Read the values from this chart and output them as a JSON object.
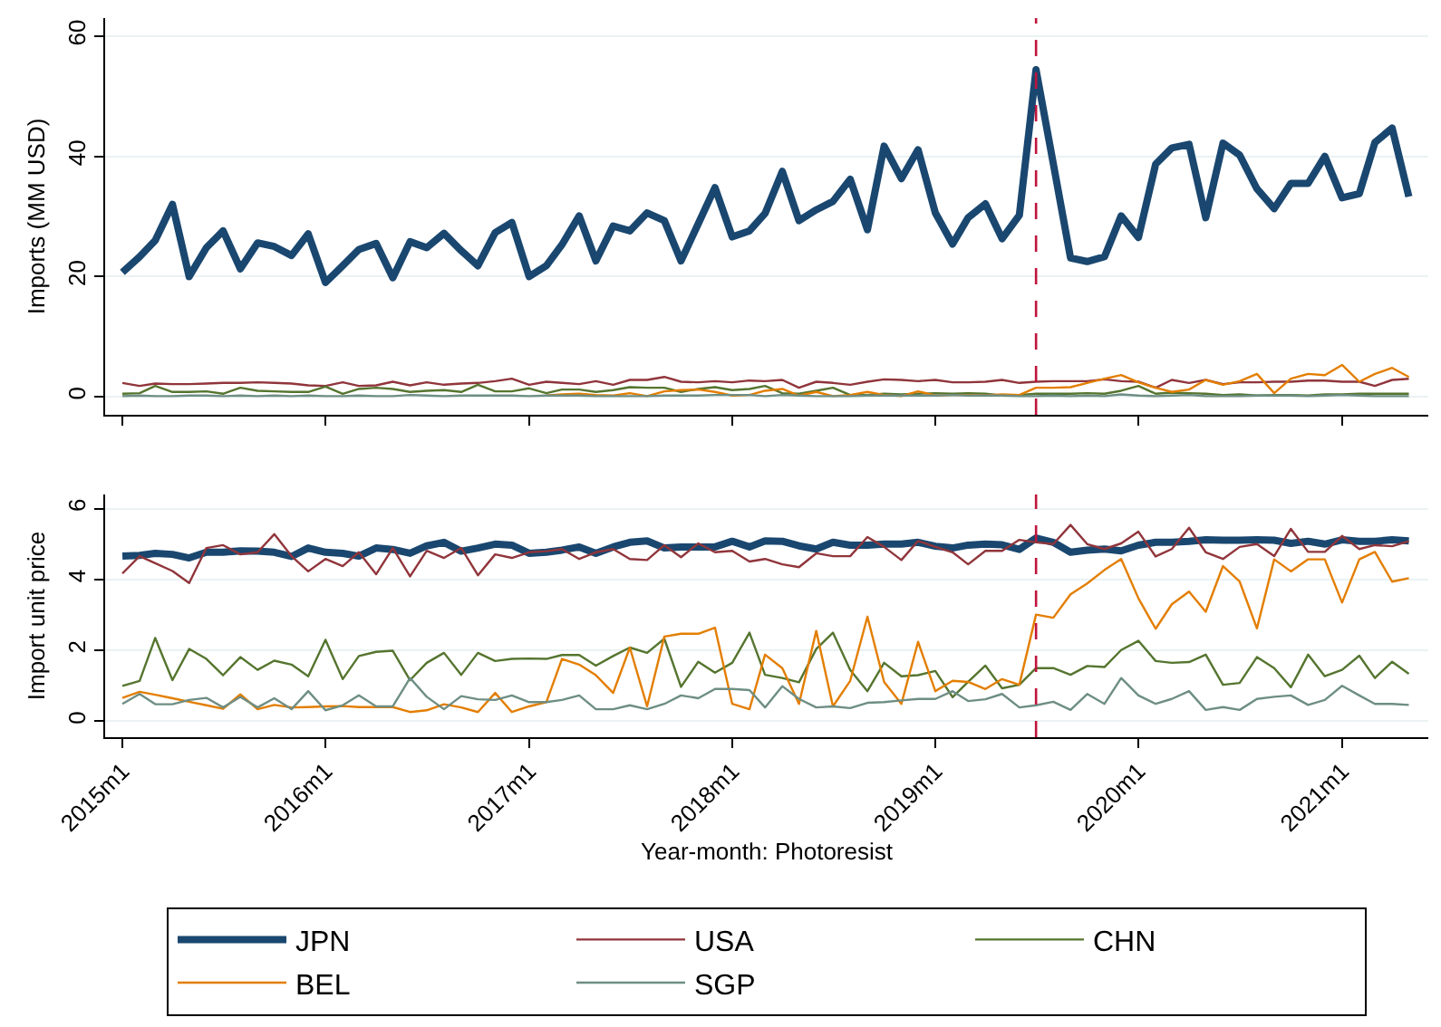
{
  "chart_data": [
    {
      "type": "line",
      "ylabel": "Imports (MM USD)",
      "grid": "y",
      "legend": false,
      "tick_labels": "y",
      "x": [
        "2015-01",
        "2015-02",
        "2015-03",
        "2015-04",
        "2015-05",
        "2015-06",
        "2015-07",
        "2015-08",
        "2015-09",
        "2015-10",
        "2015-11",
        "2015-12",
        "2016-01",
        "2016-02",
        "2016-03",
        "2016-04",
        "2016-05",
        "2016-06",
        "2016-07",
        "2016-08",
        "2016-09",
        "2016-10",
        "2016-11",
        "2016-12",
        "2017-01",
        "2017-02",
        "2017-03",
        "2017-04",
        "2017-05",
        "2017-06",
        "2017-07",
        "2017-08",
        "2017-09",
        "2017-10",
        "2017-11",
        "2017-12",
        "2018-01",
        "2018-02",
        "2018-03",
        "2018-04",
        "2018-05",
        "2018-06",
        "2018-07",
        "2018-08",
        "2018-09",
        "2018-10",
        "2018-11",
        "2018-12",
        "2019-01",
        "2019-02",
        "2019-03",
        "2019-04",
        "2019-05",
        "2019-06",
        "2019-07",
        "2019-08",
        "2019-09",
        "2019-10",
        "2019-11",
        "2019-12",
        "2020-01",
        "2020-02",
        "2020-03",
        "2020-04",
        "2020-05",
        "2020-06",
        "2020-07",
        "2020-08",
        "2020-09",
        "2020-10",
        "2020-11",
        "2020-12",
        "2021-01",
        "2021-02",
        "2021-03",
        "2021-04",
        "2021-05"
      ],
      "xlim": [
        "2014-12-01",
        "2021-06-05"
      ],
      "xticks": [
        {
          "value": "2015-01",
          "label": null
        },
        {
          "value": "2016-01",
          "label": null
        },
        {
          "value": "2017-01",
          "label": null
        },
        {
          "value": "2018-01",
          "label": null
        },
        {
          "value": "2019-01",
          "label": null
        },
        {
          "value": "2020-01",
          "label": null
        },
        {
          "value": "2021-01",
          "label": null
        }
      ],
      "ylim": [
        -3,
        63
      ],
      "yticks": [
        0,
        20,
        40,
        60
      ],
      "ref_lines": [
        {
          "axis": "x",
          "value": "2019-07",
          "color": "#c0143c",
          "line_style": "dashed"
        }
      ],
      "series": [
        {
          "color": "#1a476f",
          "values": [
            20.7,
            23.3,
            26,
            32,
            20,
            24.8,
            27.6,
            21.3,
            25.6,
            25,
            23.5,
            27.1,
            19,
            21.8,
            24.5,
            25.5,
            19.8,
            25.8,
            24.8,
            27.2,
            24.3,
            21.8,
            27.3,
            29,
            20,
            21.8,
            25.3,
            30.1,
            22.6,
            28.4,
            27.6,
            30.6,
            29.3,
            22.6,
            28.8,
            34.8,
            26.6,
            27.6,
            30.5,
            37.5,
            29.3,
            31.1,
            32.5,
            36.2,
            27.8,
            41.7,
            36.3,
            41.1,
            30.6,
            25.4,
            29.8,
            32.1,
            26.3,
            30.2,
            54.4,
            38.8,
            23.1,
            22.5,
            23.3,
            30.1,
            26.5,
            38.7,
            41.4,
            42,
            29.8,
            42.2,
            40.2,
            34.6,
            31.3,
            35.5,
            35.5,
            40,
            33.1,
            33.8,
            42.3,
            44.7,
            33.3
          ]
        },
        {
          "color": "#90353b",
          "values": [
            2.3,
            1.8,
            2.2,
            2.1,
            2.1,
            2.2,
            2.3,
            2.3,
            2.4,
            2.3,
            2.2,
            1.9,
            1.8,
            2.4,
            1.8,
            1.9,
            2.5,
            1.9,
            2.4,
            2.0,
            2.2,
            2.3,
            2.6,
            3.0,
            2.0,
            2.5,
            2.3,
            2.1,
            2.6,
            2.0,
            2.8,
            2.8,
            3.3,
            2.5,
            2.4,
            2.6,
            2.4,
            2.7,
            2.6,
            2.8,
            1.5,
            2.5,
            2.3,
            2.0,
            2.5,
            2.9,
            2.8,
            2.6,
            2.8,
            2.4,
            2.4,
            2.5,
            2.8,
            2.3,
            2.5,
            2.6,
            2.6,
            2.6,
            2.9,
            2.6,
            2.5,
            1.5,
            2.8,
            2.3,
            2.8,
            2.1,
            2.4,
            2.4,
            2.5,
            2.5,
            2.7,
            2.7,
            2.5,
            2.5,
            1.8,
            2.8,
            3.0
          ]
        },
        {
          "color": "#55752f",
          "values": [
            0.5,
            0.6,
            1.8,
            0.8,
            0.8,
            0.9,
            0.5,
            1.5,
            1.0,
            0.9,
            0.8,
            0.8,
            1.7,
            0.5,
            1.3,
            1.5,
            1.3,
            0.8,
            1.0,
            1.1,
            0.8,
            2.0,
            0.9,
            0.9,
            1.4,
            0.6,
            1.2,
            1.2,
            0.8,
            1.1,
            1.6,
            1.5,
            1.5,
            0.8,
            1.3,
            1.6,
            1.1,
            1.3,
            1.8,
            0.6,
            0.5,
            1.0,
            1.5,
            0.3,
            0.3,
            0.5,
            0.4,
            0.5,
            0.6,
            0.5,
            0.6,
            0.5,
            0.2,
            0.3,
            0.5,
            0.5,
            0.5,
            0.6,
            0.5,
            1.0,
            1.8,
            0.5,
            0.7,
            0.6,
            0.5,
            0.3,
            0.4,
            0.2,
            0.3,
            0.3,
            0.2,
            0.4,
            0.4,
            0.5,
            0.5,
            0.5,
            0.5
          ]
        },
        {
          "color": "#e37e00",
          "values": [
            null,
            null,
            null,
            null,
            null,
            null,
            null,
            null,
            null,
            null,
            null,
            null,
            null,
            null,
            null,
            null,
            null,
            null,
            null,
            null,
            null,
            null,
            null,
            null,
            null,
            0.2,
            0.4,
            0.5,
            0.3,
            0.2,
            0.6,
            0.1,
            0.9,
            1.1,
            1.2,
            0.8,
            0.2,
            0.3,
            1.0,
            1.3,
            0.2,
            0.8,
            0.1,
            0.3,
            0.8,
            0.3,
            0.1,
            0.9,
            0.2,
            0.3,
            0.3,
            0.2,
            0.4,
            0.3,
            1.5,
            1.5,
            1.6,
            2.3,
            3.0,
            3.6,
            2.4,
            1.5,
            0.8,
            1.2,
            2.8,
            2.0,
            2.6,
            3.8,
            0.6,
            3.0,
            3.8,
            3.6,
            5.3,
            2.5,
            3.8,
            4.8,
            3.3
          ]
        },
        {
          "color": "#6e8e84",
          "values": [
            0.1,
            0.2,
            0.1,
            0.1,
            0.2,
            0.2,
            0.1,
            0.2,
            0.1,
            0.2,
            0.1,
            0.2,
            0.1,
            0.1,
            0.2,
            0.1,
            0.1,
            0.3,
            0.2,
            0.1,
            0.2,
            0.2,
            0.2,
            0.2,
            0.1,
            0.2,
            0.2,
            0.2,
            0.1,
            0.1,
            0.1,
            0.1,
            0.2,
            0.2,
            0.2,
            0.3,
            0.3,
            0.3,
            0.1,
            0.3,
            0.2,
            0.1,
            0.1,
            0.1,
            0.2,
            0.2,
            0.2,
            0.2,
            0.2,
            0.3,
            0.2,
            0.2,
            0.2,
            0.1,
            0.1,
            0.2,
            0.1,
            0.2,
            0.1,
            0.4,
            0.2,
            0.1,
            0.2,
            0.3,
            0.1,
            0.1,
            0.1,
            0.2,
            0.2,
            0.2,
            0.1,
            0.2,
            0.3,
            0.2,
            0.1,
            0.1,
            0.1
          ]
        }
      ]
    },
    {
      "type": "line",
      "ylabel": "Import unit price",
      "xlabel": "Year-month: Photoresist",
      "grid": "y",
      "legend": "bottom",
      "x": [
        "2015-01",
        "2015-02",
        "2015-03",
        "2015-04",
        "2015-05",
        "2015-06",
        "2015-07",
        "2015-08",
        "2015-09",
        "2015-10",
        "2015-11",
        "2015-12",
        "2016-01",
        "2016-02",
        "2016-03",
        "2016-04",
        "2016-05",
        "2016-06",
        "2016-07",
        "2016-08",
        "2016-09",
        "2016-10",
        "2016-11",
        "2016-12",
        "2017-01",
        "2017-02",
        "2017-03",
        "2017-04",
        "2017-05",
        "2017-06",
        "2017-07",
        "2017-08",
        "2017-09",
        "2017-10",
        "2017-11",
        "2017-12",
        "2018-01",
        "2018-02",
        "2018-03",
        "2018-04",
        "2018-05",
        "2018-06",
        "2018-07",
        "2018-08",
        "2018-09",
        "2018-10",
        "2018-11",
        "2018-12",
        "2019-01",
        "2019-02",
        "2019-03",
        "2019-04",
        "2019-05",
        "2019-06",
        "2019-07",
        "2019-08",
        "2019-09",
        "2019-10",
        "2019-11",
        "2019-12",
        "2020-01",
        "2020-02",
        "2020-03",
        "2020-04",
        "2020-05",
        "2020-06",
        "2020-07",
        "2020-08",
        "2020-09",
        "2020-10",
        "2020-11",
        "2020-12",
        "2021-01",
        "2021-02",
        "2021-03",
        "2021-04",
        "2021-05"
      ],
      "xlim": [
        "2014-12-01",
        "2021-06-05"
      ],
      "xticks": [
        {
          "value": "2015-01",
          "label": "2015m1"
        },
        {
          "value": "2016-01",
          "label": "2016m1"
        },
        {
          "value": "2017-01",
          "label": "2017m1"
        },
        {
          "value": "2018-01",
          "label": "2018m1"
        },
        {
          "value": "2019-01",
          "label": "2019m1"
        },
        {
          "value": "2020-01",
          "label": "2020m1"
        },
        {
          "value": "2021-01",
          "label": "2021m1"
        }
      ],
      "ylim": [
        -0.45,
        6.4
      ],
      "yticks": [
        0,
        2,
        4,
        6
      ],
      "ref_lines": [
        {
          "axis": "x",
          "value": "2019-07",
          "color": "#c0143c",
          "line_style": "dashed"
        }
      ],
      "series": [
        {
          "name": "JPN",
          "color": "#1a476f",
          "values": [
            4.66,
            4.68,
            4.74,
            4.71,
            4.61,
            4.77,
            4.77,
            4.81,
            4.8,
            4.77,
            4.65,
            4.89,
            4.77,
            4.74,
            4.66,
            4.89,
            4.85,
            4.74,
            4.95,
            5.05,
            4.8,
            4.89,
            5.0,
            4.97,
            4.74,
            4.77,
            4.83,
            4.92,
            4.74,
            4.92,
            5.05,
            5.09,
            4.89,
            4.92,
            4.92,
            4.92,
            5.08,
            4.92,
            5.09,
            5.08,
            4.95,
            4.86,
            5.05,
            4.97,
            4.97,
            5.0,
            5.0,
            5.05,
            4.94,
            4.89,
            4.97,
            5.0,
            4.98,
            4.85,
            5.17,
            5.05,
            4.77,
            4.83,
            4.86,
            4.81,
            4.97,
            5.05,
            5.05,
            5.08,
            5.12,
            5.11,
            5.11,
            5.12,
            5.11,
            5.02,
            5.08,
            5.0,
            5.12,
            5.08,
            5.08,
            5.12,
            5.09
          ]
        },
        {
          "name": "USA",
          "color": "#90353b",
          "values": [
            4.17,
            4.66,
            4.46,
            4.24,
            3.9,
            4.89,
            4.97,
            4.71,
            4.77,
            5.28,
            4.66,
            4.23,
            4.58,
            4.38,
            4.77,
            4.15,
            4.89,
            4.09,
            4.81,
            4.61,
            4.89,
            4.12,
            4.71,
            4.61,
            4.77,
            4.8,
            4.86,
            4.58,
            4.77,
            4.86,
            4.58,
            4.55,
            4.97,
            4.63,
            5.02,
            4.77,
            4.81,
            4.51,
            4.58,
            4.43,
            4.35,
            4.74,
            4.66,
            4.66,
            5.2,
            4.92,
            4.55,
            5.09,
            4.92,
            4.77,
            4.43,
            4.81,
            4.81,
            5.12,
            5.05,
            5.0,
            5.54,
            5.0,
            4.86,
            5.02,
            5.35,
            4.65,
            4.86,
            5.46,
            4.77,
            4.58,
            4.92,
            5.0,
            4.66,
            5.43,
            4.78,
            4.78,
            5.23,
            4.86,
            4.97,
            4.94,
            5.08
          ]
        },
        {
          "name": "CHN",
          "color": "#55752f",
          "values": [
            1.0,
            1.14,
            2.35,
            1.16,
            2.04,
            1.76,
            1.3,
            1.81,
            1.45,
            1.71,
            1.6,
            1.27,
            2.3,
            1.19,
            1.84,
            1.96,
            1.99,
            1.16,
            1.65,
            1.93,
            1.31,
            1.93,
            1.7,
            1.76,
            1.77,
            1.76,
            1.87,
            1.87,
            1.57,
            1.84,
            2.08,
            1.93,
            2.33,
            0.97,
            1.68,
            1.37,
            1.65,
            2.5,
            1.31,
            1.22,
            1.1,
            2.04,
            2.5,
            1.45,
            0.85,
            1.65,
            1.27,
            1.3,
            1.42,
            0.68,
            1.11,
            1.57,
            0.93,
            1.03,
            1.5,
            1.5,
            1.31,
            1.56,
            1.53,
            2.01,
            2.27,
            1.7,
            1.65,
            1.67,
            1.88,
            1.03,
            1.08,
            1.81,
            1.5,
            0.96,
            1.88,
            1.27,
            1.45,
            1.85,
            1.22,
            1.68,
            1.34
          ]
        },
        {
          "name": "BEL",
          "color": "#e37e00",
          "values": [
            0.66,
            0.83,
            0.75,
            0.65,
            0.55,
            0.45,
            0.35,
            0.76,
            0.34,
            0.46,
            0.39,
            0.4,
            0.42,
            0.43,
            0.4,
            0.4,
            0.4,
            0.26,
            0.31,
            0.48,
            0.39,
            0.26,
            0.8,
            0.26,
            0.42,
            0.54,
            1.76,
            1.6,
            1.3,
            0.8,
            2.08,
            0.42,
            2.39,
            2.47,
            2.47,
            2.64,
            0.49,
            0.34,
            1.88,
            1.5,
            0.49,
            2.55,
            0.42,
            1.14,
            2.95,
            1.11,
            0.49,
            2.24,
            0.85,
            1.14,
            1.11,
            0.91,
            1.19,
            1.03,
            3.01,
            2.92,
            3.58,
            3.89,
            4.27,
            4.58,
            3.47,
            2.61,
            3.3,
            3.66,
            3.09,
            4.38,
            3.94,
            2.62,
            4.57,
            4.23,
            4.57,
            4.57,
            3.35,
            4.57,
            4.78,
            3.94,
            4.04
          ]
        },
        {
          "name": "SGP",
          "color": "#6e8e84",
          "values": [
            0.49,
            0.77,
            0.48,
            0.48,
            0.6,
            0.66,
            0.39,
            0.69,
            0.39,
            0.65,
            0.34,
            0.85,
            0.31,
            0.45,
            0.73,
            0.42,
            0.42,
            1.22,
            0.69,
            0.34,
            0.71,
            0.62,
            0.6,
            0.73,
            0.54,
            0.54,
            0.6,
            0.73,
            0.34,
            0.34,
            0.45,
            0.34,
            0.49,
            0.73,
            0.65,
            0.91,
            0.91,
            0.88,
            0.39,
            0.99,
            0.63,
            0.39,
            0.42,
            0.37,
            0.52,
            0.54,
            0.59,
            0.63,
            0.63,
            0.85,
            0.57,
            0.62,
            0.77,
            0.39,
            0.45,
            0.55,
            0.32,
            0.77,
            0.49,
            1.22,
            0.73,
            0.49,
            0.63,
            0.85,
            0.32,
            0.4,
            0.32,
            0.63,
            0.69,
            0.73,
            0.46,
            0.6,
            1.0,
            0.73,
            0.49,
            0.49,
            0.46
          ]
        }
      ]
    }
  ]
}
